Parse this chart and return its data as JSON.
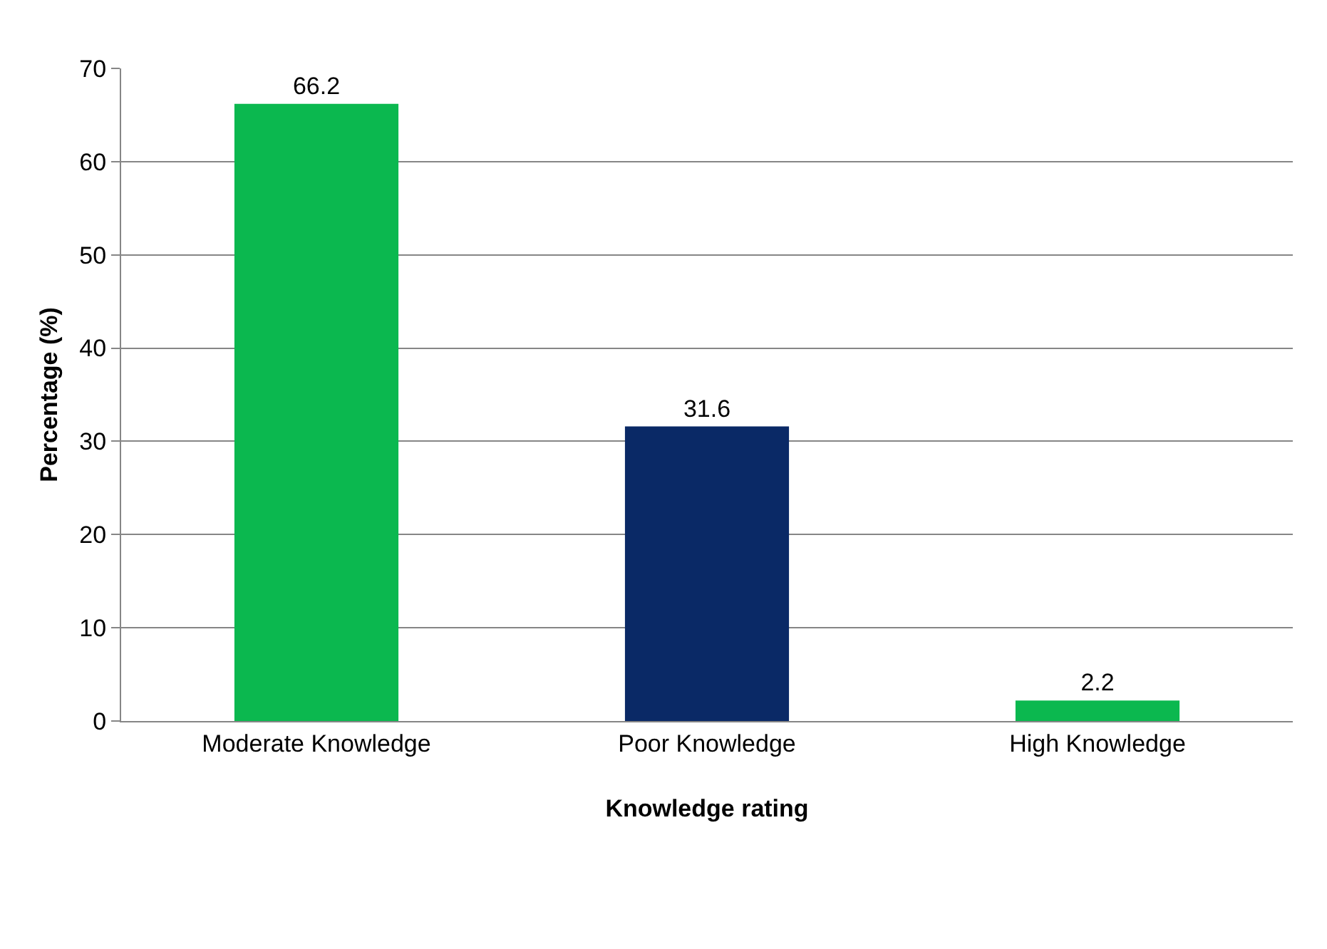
{
  "chart_data": {
    "type": "bar",
    "xlabel": "Knowledge rating",
    "ylabel": "Percentage (%)",
    "categories": [
      "Moderate Knowledge",
      "Poor Knowledge",
      "High Knowledge"
    ],
    "values": [
      66.2,
      31.6,
      2.2
    ],
    "colors": [
      "#0bb84f",
      "#0a2966",
      "#0bb84f"
    ],
    "ylim": [
      0,
      70
    ],
    "yticks": [
      0,
      10,
      20,
      30,
      40,
      50,
      60,
      70
    ],
    "grid": "y",
    "data_labels": true
  }
}
